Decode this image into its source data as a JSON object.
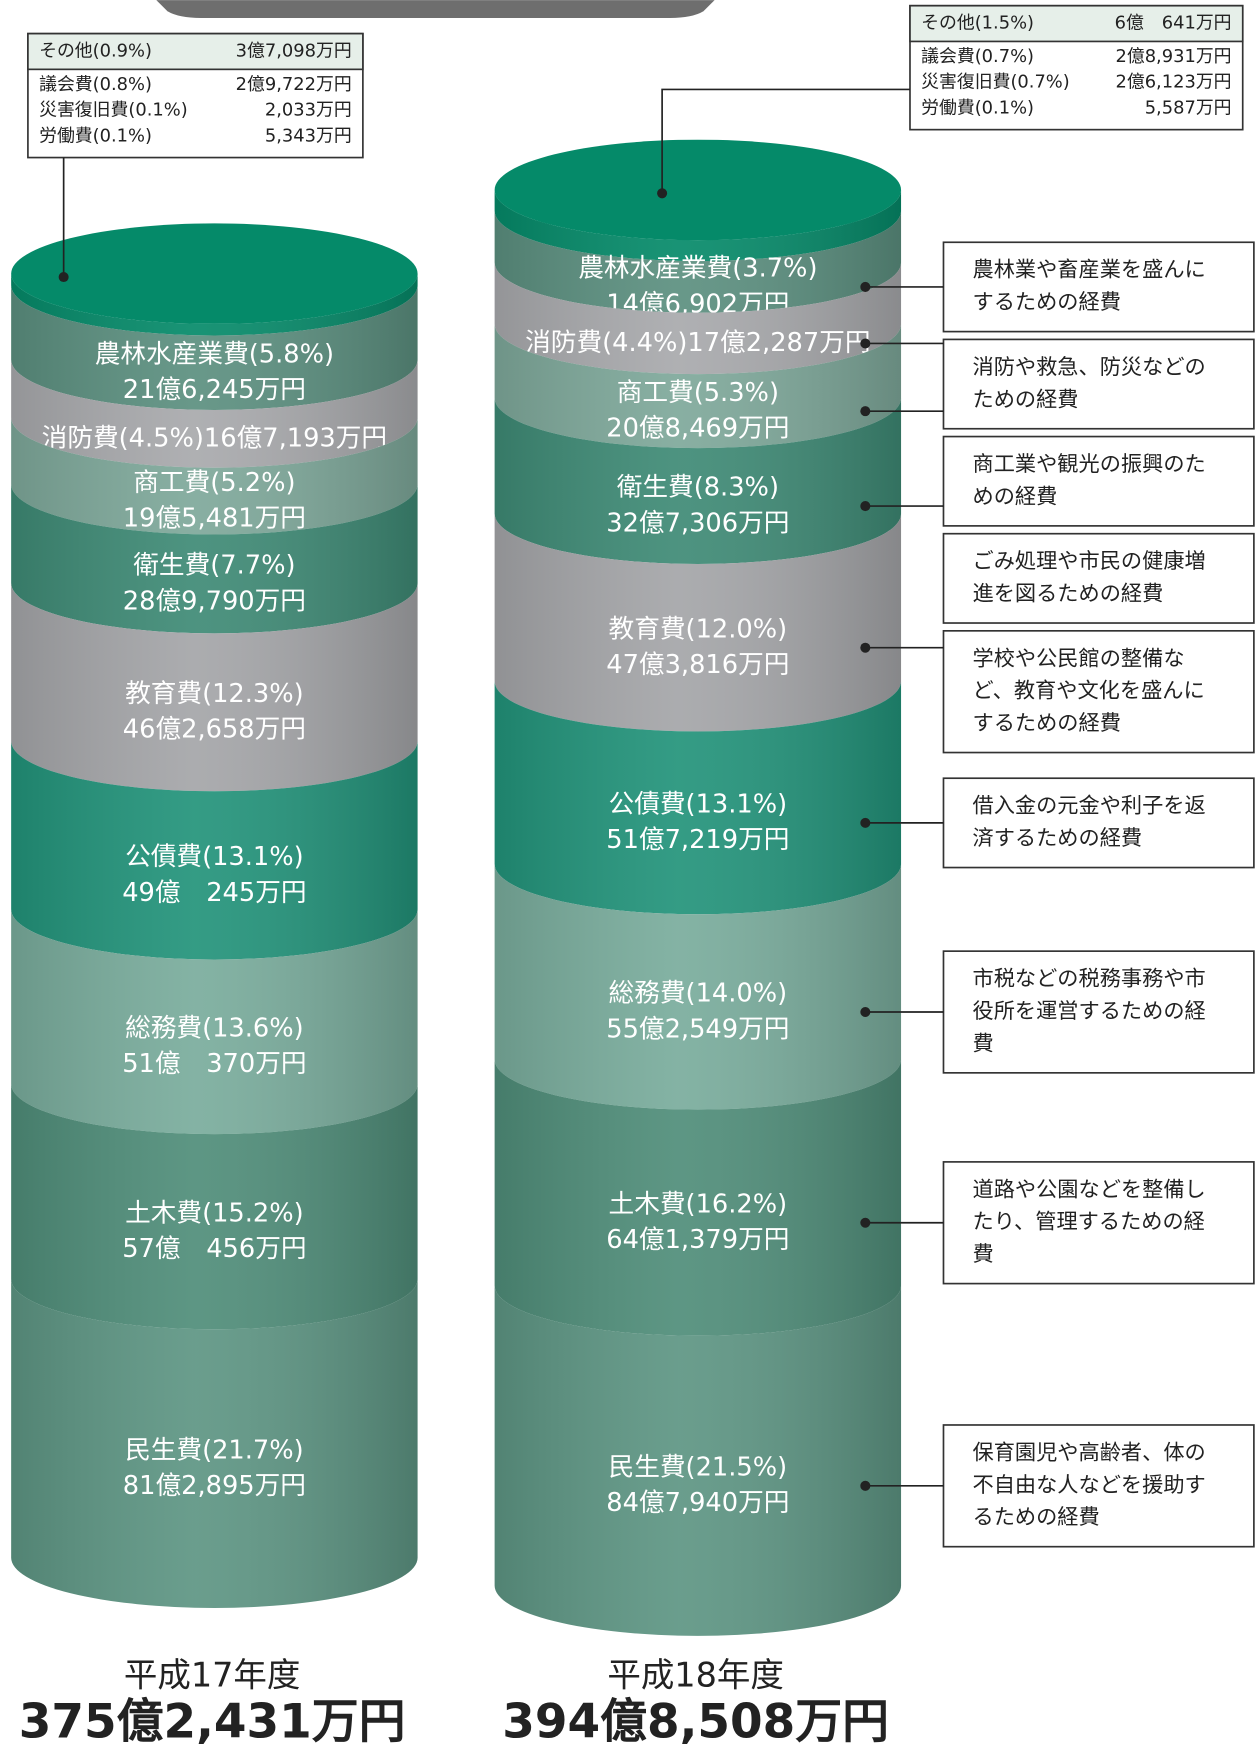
{
  "chart_data": {
    "type": "stacked-cylinder",
    "columns": [
      {
        "year": "平成17年度",
        "total": "375億2,431万円",
        "segments": [
          {
            "label": "その他(0.9%)",
            "amount": "3億7,098万円",
            "percent": 0.9,
            "color": "#058a69",
            "breakdown": [
              {
                "label": "議会費(0.8%)",
                "amount": "2億9,722万円"
              },
              {
                "label": "災害復旧費(0.1%)",
                "amount": "2,033万円"
              },
              {
                "label": "労働費(0.1%)",
                "amount": "5,343万円"
              }
            ]
          },
          {
            "label": "農林水産業費(5.8%)",
            "amount": "21億6,245万円",
            "percent": 5.8,
            "color": "#5b8f7f"
          },
          {
            "label": "消防費(4.5%)16億7,193万円",
            "percent": 4.5,
            "color": "#a8a9ac"
          },
          {
            "label": "商工費(5.2%)",
            "amount": "19億5,481万円",
            "percent": 5.2,
            "color": "#7ea89a"
          },
          {
            "label": "衛生費(7.7%)",
            "amount": "28億9,790万円",
            "percent": 7.7,
            "color": "#3e8a75"
          },
          {
            "label": "教育費(12.3%)",
            "amount": "46億2,658万円",
            "percent": 12.3,
            "color": "#a4a5a8"
          },
          {
            "label": "公債費(13.1%)",
            "amount": "49億　245万円",
            "percent": 13.1,
            "color": "#22937a"
          },
          {
            "label": "総務費(13.6%)",
            "amount": "51億　370万円",
            "percent": 13.6,
            "color": "#79ac9c"
          },
          {
            "label": "土木費(15.2%)",
            "amount": "57億　456万円",
            "percent": 15.2,
            "color": "#4f8d79"
          },
          {
            "label": "民生費(21.7%)",
            "amount": "81億2,895万円",
            "percent": 21.7,
            "color": "#5d9583"
          }
        ]
      },
      {
        "year": "平成18年度",
        "total": "394億8,508万円",
        "segments": [
          {
            "label": "その他(1.5%)",
            "amount": "6億　641万円",
            "percent": 1.5,
            "color": "#058a69",
            "breakdown": [
              {
                "label": "議会費(0.7%)",
                "amount": "2億8,931万円"
              },
              {
                "label": "災害復旧費(0.7%)",
                "amount": "2億6,123万円"
              },
              {
                "label": "労働費(0.1%)",
                "amount": "5,587万円"
              }
            ]
          },
          {
            "label": "農林水産業費(3.7%)",
            "amount": "14億6,902万円",
            "percent": 3.7,
            "color": "#5b8f7f",
            "description": [
              "農林業や畜産業を盛んに",
              "するための経費"
            ]
          },
          {
            "label": "消防費(4.4%)17億2,287万円",
            "percent": 4.4,
            "color": "#a8a9ac",
            "description": [
              "消防や救急、防災などの",
              "ための経費"
            ]
          },
          {
            "label": "商工費(5.3%)",
            "amount": "20億8,469万円",
            "percent": 5.3,
            "color": "#7ea89a",
            "description": [
              "商工業や観光の振興のた",
              "めの経費"
            ]
          },
          {
            "label": "衛生費(8.3%)",
            "amount": "32億7,306万円",
            "percent": 8.3,
            "color": "#3e8a75",
            "description": [
              "ごみ処理や市民の健康増",
              "進を図るための経費"
            ]
          },
          {
            "label": "教育費(12.0%)",
            "amount": "47億3,816万円",
            "percent": 12.0,
            "color": "#a4a5a8",
            "description": [
              "学校や公民館の整備な",
              "ど、教育や文化を盛んに",
              "するための経費"
            ]
          },
          {
            "label": "公債費(13.1%)",
            "amount": "51億7,219万円",
            "percent": 13.1,
            "color": "#22937a",
            "description": [
              "借入金の元金や利子を返",
              "済するための経費"
            ]
          },
          {
            "label": "総務費(14.0%)",
            "amount": "55億2,549万円",
            "percent": 14.0,
            "color": "#79ac9c",
            "description": [
              "市税などの税務事務や市",
              "役所を運営するための経",
              "費"
            ]
          },
          {
            "label": "土木費(16.2%)",
            "amount": "64億1,379万円",
            "percent": 16.2,
            "color": "#4f8d79",
            "description": [
              "道路や公園などを整備し",
              "たり、管理するための経",
              "費"
            ]
          },
          {
            "label": "民生費(21.5%)",
            "amount": "84億7,940万円",
            "percent": 21.5,
            "color": "#5d9583",
            "description": [
              "保育園児や高齢者、体の",
              "不自由な人などを援助す",
              "るための経費"
            ]
          }
        ]
      }
    ]
  }
}
